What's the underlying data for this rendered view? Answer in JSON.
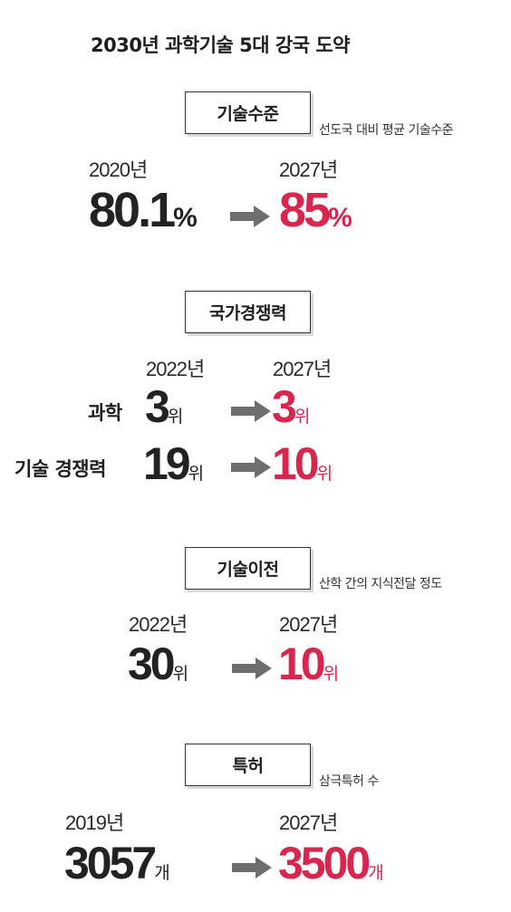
{
  "title": "2030년 과학기술 5대 강국 도약",
  "colors": {
    "highlight": "#d8264f",
    "text": "#222222",
    "arrow": "#6e6e6e"
  },
  "sections": [
    {
      "heading": "기술수준",
      "note": "선도국 대비 평균 기술수준",
      "from_year": "2020년",
      "to_year": "2027년",
      "from_value": "80.1",
      "from_unit": "%",
      "to_value": "85",
      "to_unit": "%"
    },
    {
      "heading": "국가경쟁력",
      "from_year": "2022년",
      "to_year": "2027년",
      "rows": [
        {
          "label": "과학",
          "from_value": "3",
          "from_unit": "위",
          "to_value": "3",
          "to_unit": "위"
        },
        {
          "label": "기술 경쟁력",
          "from_value": "19",
          "from_unit": "위",
          "to_value": "10",
          "to_unit": "위"
        }
      ]
    },
    {
      "heading": "기술이전",
      "note": "산학 간의 지식전달 정도",
      "from_year": "2022년",
      "to_year": "2027년",
      "from_value": "30",
      "from_unit": "위",
      "to_value": "10",
      "to_unit": "위"
    },
    {
      "heading": "특허",
      "note": "삼극특허 수",
      "from_year": "2019년",
      "to_year": "2027년",
      "from_value": "3057",
      "from_unit": "개",
      "to_value": "3500",
      "to_unit": "개"
    }
  ],
  "icons": {
    "arrow": "right-arrow-icon"
  }
}
